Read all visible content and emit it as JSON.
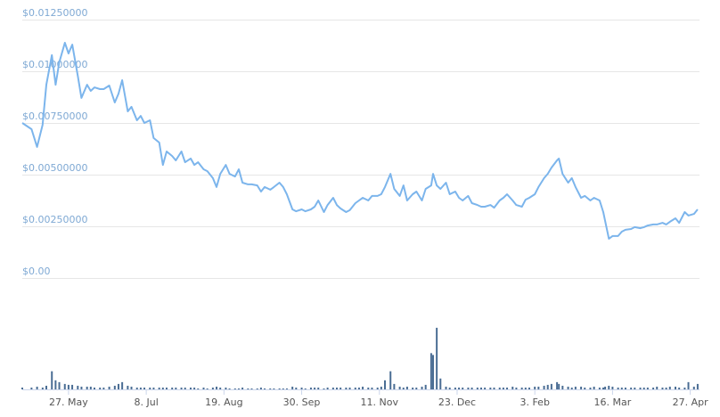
{
  "chart_data": [
    {
      "type": "line",
      "color": "#7cb5ec",
      "grid": true,
      "xlim": [
        0,
        366
      ],
      "xticks": [
        {
          "value": 25,
          "label": "27. May"
        },
        {
          "value": 67,
          "label": "8. Jul"
        },
        {
          "value": 109,
          "label": "19. Aug"
        },
        {
          "value": 151,
          "label": "30. Sep"
        },
        {
          "value": 193,
          "label": "11. Nov"
        },
        {
          "value": 235,
          "label": "23. Dec"
        },
        {
          "value": 277,
          "label": "3. Feb"
        },
        {
          "value": 319,
          "label": "16. Mar"
        },
        {
          "value": 361,
          "label": "27. Apr"
        }
      ],
      "ylim": [
        0,
        0.0125
      ],
      "yticks": [
        {
          "value": 0,
          "label": "$0.00"
        },
        {
          "value": 0.0025,
          "label": "$0.00250000"
        },
        {
          "value": 0.005,
          "label": "$0.00500000"
        },
        {
          "value": 0.0075,
          "label": "$0.00750000"
        },
        {
          "value": 0.01,
          "label": "$0.01000000"
        },
        {
          "value": 0.0125,
          "label": "$0.01250000"
        }
      ],
      "x": [
        0,
        5,
        8,
        11,
        13,
        16,
        18,
        20,
        23,
        25,
        27,
        30,
        32,
        35,
        37,
        39,
        42,
        44,
        47,
        50,
        52,
        54,
        57,
        59,
        62,
        64,
        66,
        69,
        71,
        74,
        76,
        78,
        81,
        83,
        86,
        88,
        91,
        93,
        95,
        98,
        100,
        103,
        105,
        107,
        110,
        112,
        115,
        117,
        119,
        122,
        124,
        127,
        129,
        131,
        134,
        136,
        139,
        141,
        143,
        146,
        148,
        151,
        153,
        156,
        158,
        160,
        163,
        165,
        168,
        170,
        172,
        175,
        177,
        180,
        182,
        184,
        187,
        189,
        192,
        194,
        196,
        199,
        201,
        204,
        206,
        208,
        211,
        213,
        216,
        218,
        221,
        222,
        224,
        226,
        229,
        231,
        234,
        236,
        238,
        241,
        243,
        246,
        248,
        250,
        253,
        255,
        258,
        260,
        262,
        265,
        267,
        270,
        272,
        274,
        277,
        279,
        282,
        284,
        286,
        289,
        290,
        292,
        295,
        297,
        299,
        302,
        304,
        307,
        309,
        312,
        314,
        315,
        317,
        319,
        322,
        324,
        326,
        329,
        331,
        334,
        336,
        338,
        341,
        343,
        346,
        348,
        350,
        353,
        355,
        358,
        360,
        363,
        365
      ],
      "values": [
        0.0075,
        0.0072,
        0.00634,
        0.00741,
        0.00935,
        0.01078,
        0.00935,
        0.01043,
        0.01138,
        0.01086,
        0.01129,
        0.00978,
        0.00871,
        0.00935,
        0.00905,
        0.00922,
        0.00914,
        0.00914,
        0.00931,
        0.00849,
        0.00892,
        0.00957,
        0.00806,
        0.00828,
        0.00763,
        0.00784,
        0.0075,
        0.00763,
        0.00677,
        0.00655,
        0.00547,
        0.00612,
        0.0059,
        0.00569,
        0.00612,
        0.0056,
        0.00578,
        0.00547,
        0.0056,
        0.00526,
        0.00517,
        0.00483,
        0.0044,
        0.00504,
        0.00547,
        0.00504,
        0.00491,
        0.00526,
        0.00461,
        0.00453,
        0.00453,
        0.00448,
        0.00418,
        0.0044,
        0.00427,
        0.0044,
        0.00461,
        0.0044,
        0.00405,
        0.00332,
        0.00323,
        0.00332,
        0.00323,
        0.00332,
        0.00345,
        0.00375,
        0.00319,
        0.00353,
        0.00388,
        0.00353,
        0.00336,
        0.00319,
        0.00328,
        0.00362,
        0.00375,
        0.00388,
        0.00375,
        0.00397,
        0.00397,
        0.00405,
        0.0044,
        0.00504,
        0.00431,
        0.00397,
        0.00448,
        0.00375,
        0.00405,
        0.00418,
        0.00375,
        0.00431,
        0.00448,
        0.00504,
        0.00448,
        0.00431,
        0.00461,
        0.00405,
        0.00418,
        0.00388,
        0.00375,
        0.00397,
        0.00362,
        0.00353,
        0.00345,
        0.00345,
        0.00353,
        0.0034,
        0.00375,
        0.00388,
        0.00405,
        0.00375,
        0.00353,
        0.00345,
        0.00379,
        0.00388,
        0.00405,
        0.0044,
        0.00483,
        0.00504,
        0.00534,
        0.00569,
        0.00578,
        0.00504,
        0.00461,
        0.00483,
        0.0044,
        0.00388,
        0.00397,
        0.00375,
        0.00388,
        0.00375,
        0.00319,
        0.00276,
        0.0019,
        0.00203,
        0.00203,
        0.00224,
        0.00233,
        0.00237,
        0.00246,
        0.00241,
        0.00246,
        0.00254,
        0.00259,
        0.00259,
        0.00267,
        0.00259,
        0.00272,
        0.00289,
        0.00267,
        0.00319,
        0.00302,
        0.0031,
        0.00332
      ]
    },
    {
      "type": "bar",
      "color": "#4a6d94",
      "ylim": [
        0,
        120
      ],
      "values": [
        2,
        2,
        3,
        2,
        4,
        20,
        10,
        8,
        6,
        5,
        5,
        4,
        3,
        3,
        3,
        2,
        2,
        2,
        3,
        4,
        6,
        8,
        4,
        3,
        2,
        2,
        2,
        2,
        2,
        2,
        2,
        2,
        2,
        2,
        2,
        2,
        2,
        2,
        1,
        2,
        1,
        2,
        3,
        2,
        2,
        1,
        1,
        1,
        2,
        1,
        1,
        1,
        2,
        1,
        1,
        1,
        1,
        1,
        1,
        3,
        2,
        2,
        1,
        2,
        2,
        2,
        1,
        2,
        2,
        2,
        2,
        2,
        2,
        2,
        2,
        3,
        2,
        2,
        2,
        3,
        10,
        20,
        6,
        3,
        2,
        3,
        2,
        2,
        3,
        5,
        40,
        38,
        68,
        12,
        3,
        2,
        2,
        2,
        2,
        2,
        2,
        2,
        2,
        2,
        2,
        2,
        2,
        2,
        2,
        3,
        2,
        2,
        2,
        2,
        3,
        3,
        4,
        5,
        6,
        8,
        6,
        4,
        3,
        2,
        3,
        3,
        2,
        2,
        3,
        2,
        2,
        3,
        4,
        3,
        2,
        2,
        2,
        2,
        2,
        2,
        2,
        2,
        2,
        3,
        2,
        2,
        3,
        3,
        2,
        2,
        8,
        3,
        6
      ]
    }
  ]
}
